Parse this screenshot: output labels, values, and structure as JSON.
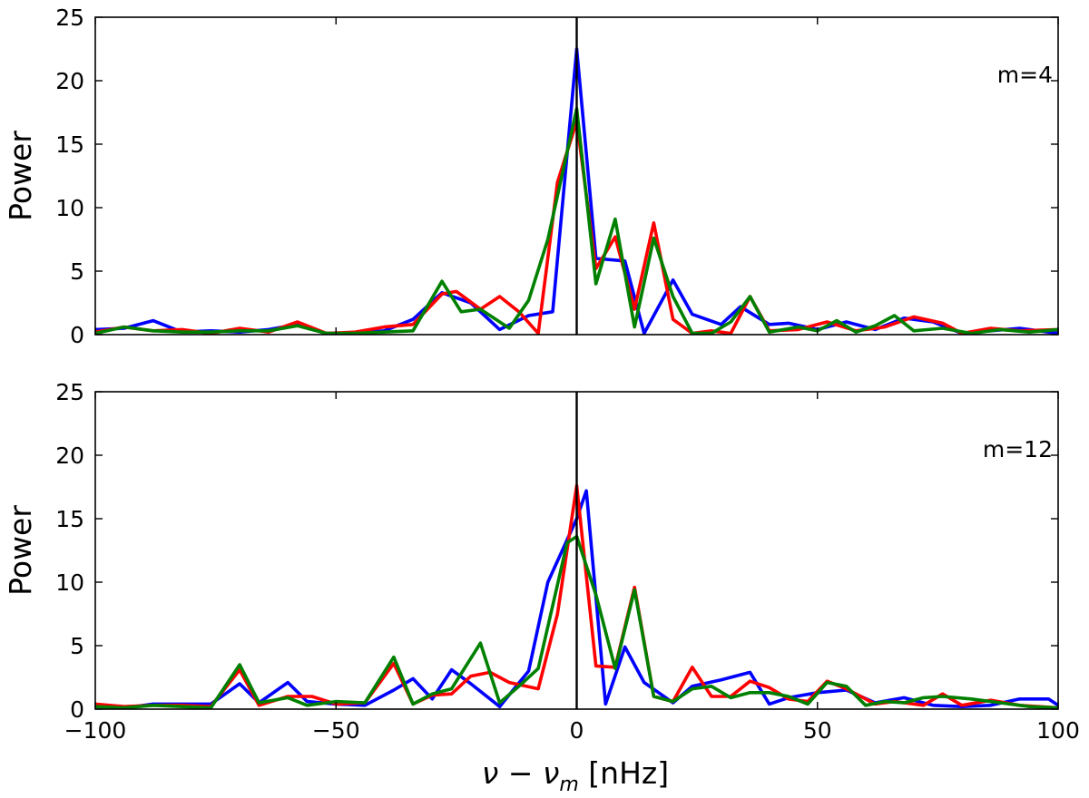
{
  "chart_data": {
    "type": "line",
    "xlabel_math": "ν − ν",
    "xlabel_sub": "m",
    "xlabel_unit": " [nHz]",
    "x_ticks": [
      "−100",
      "−50",
      "0",
      "50",
      "100"
    ],
    "x_tick_values": [
      -100,
      -50,
      0,
      50,
      100
    ],
    "y_ticks": [
      "0",
      "5",
      "10",
      "15",
      "20",
      "25"
    ],
    "y_tick_values": [
      0,
      5,
      10,
      15,
      20,
      25
    ],
    "xlim": [
      -100,
      100
    ],
    "ylim": [
      0,
      25
    ],
    "vertical_line_x": 0,
    "grid": false,
    "panels": [
      {
        "annotation": "m=4",
        "ylabel": "Power",
        "series": [
          {
            "color": "#0000ff",
            "x": [
              -100,
              -94,
              -88,
              -82,
              -76,
              -70,
              -64,
              -58,
              -52,
              -46,
              -40,
              -34,
              -28,
              -22,
              -16,
              -10,
              -5,
              0,
              4,
              10,
              14,
              20,
              24,
              30,
              34,
              40,
              44,
              50,
              56,
              62,
              68,
              74,
              80,
              86,
              92,
              100
            ],
            "y": [
              0.4,
              0.5,
              1.1,
              0.2,
              0.3,
              0.2,
              0.4,
              0.8,
              0.1,
              0.1,
              0.3,
              1.2,
              3.3,
              2.5,
              0.4,
              1.5,
              1.8,
              22.5,
              6.0,
              5.8,
              0.1,
              4.3,
              1.6,
              0.8,
              2.2,
              0.8,
              0.9,
              0.4,
              1.0,
              0.4,
              1.3,
              1.0,
              0.1,
              0.3,
              0.5,
              0.1
            ]
          },
          {
            "color": "#ff0000",
            "x": [
              -100,
              -94,
              -88,
              -82,
              -76,
              -70,
              -64,
              -58,
              -52,
              -46,
              -40,
              -34,
              -28,
              -25,
              -20,
              -16,
              -12,
              -8,
              -4,
              0,
              4,
              8,
              12,
              16,
              20,
              24,
              28,
              32,
              36,
              40,
              46,
              52,
              58,
              64,
              70,
              76,
              80,
              86,
              92,
              100
            ],
            "y": [
              0.2,
              0.6,
              0.3,
              0.4,
              0.1,
              0.5,
              0.2,
              1.0,
              0.1,
              0.2,
              0.6,
              0.8,
              3.2,
              3.4,
              2.0,
              3.0,
              1.8,
              0.1,
              12.0,
              16.8,
              5.2,
              7.7,
              2.0,
              8.8,
              1.2,
              0.1,
              0.3,
              0.1,
              3.0,
              0.3,
              0.4,
              1.0,
              0.3,
              0.6,
              1.4,
              0.9,
              0.1,
              0.5,
              0.3,
              0.4
            ]
          },
          {
            "color": "#008000",
            "x": [
              -100,
              -94,
              -88,
              -82,
              -76,
              -70,
              -64,
              -58,
              -52,
              -46,
              -40,
              -34,
              -28,
              -24,
              -20,
              -14,
              -10,
              -6,
              0,
              4,
              8,
              12,
              16,
              20,
              24,
              28,
              32,
              36,
              40,
              46,
              50,
              54,
              58,
              62,
              66,
              70,
              76,
              82,
              88,
              94,
              100
            ],
            "y": [
              0.1,
              0.6,
              0.3,
              0.2,
              0.2,
              0.3,
              0.3,
              0.7,
              0.1,
              0.1,
              0.2,
              0.3,
              4.2,
              1.8,
              2.0,
              0.5,
              2.7,
              7.5,
              17.8,
              4.0,
              9.1,
              0.6,
              7.6,
              3.0,
              0.1,
              0.1,
              1.0,
              3.0,
              0.2,
              0.6,
              0.3,
              1.1,
              0.2,
              0.7,
              1.5,
              0.3,
              0.5,
              0.1,
              0.4,
              0.2,
              0.4
            ]
          }
        ]
      },
      {
        "annotation": "m=12",
        "ylabel": "Power",
        "series": [
          {
            "color": "#0000ff",
            "x": [
              -100,
              -94,
              -88,
              -82,
              -76,
              -70,
              -66,
              -60,
              -56,
              -50,
              -44,
              -38,
              -34,
              -30,
              -26,
              -22,
              -16,
              -10,
              -6,
              0,
              2,
              6,
              10,
              14,
              20,
              24,
              30,
              36,
              40,
              44,
              50,
              56,
              62,
              68,
              74,
              80,
              86,
              92,
              98,
              100
            ],
            "y": [
              0.3,
              0.1,
              0.4,
              0.4,
              0.4,
              2.0,
              0.5,
              2.1,
              0.6,
              0.4,
              0.3,
              1.5,
              2.4,
              0.8,
              3.1,
              2.0,
              0.2,
              3.0,
              10.0,
              15.0,
              17.2,
              0.4,
              4.9,
              2.1,
              0.5,
              1.8,
              2.3,
              2.9,
              0.4,
              0.9,
              1.3,
              1.5,
              0.5,
              0.9,
              0.3,
              0.2,
              0.3,
              0.8,
              0.8,
              0.3
            ]
          },
          {
            "color": "#ff0000",
            "x": [
              -100,
              -94,
              -88,
              -82,
              -76,
              -70,
              -66,
              -60,
              -55,
              -50,
              -44,
              -38,
              -34,
              -30,
              -26,
              -22,
              -18,
              -14,
              -8,
              -4,
              0,
              4,
              8,
              12,
              16,
              20,
              24,
              28,
              32,
              36,
              40,
              44,
              48,
              52,
              56,
              62,
              66,
              72,
              76,
              80,
              86,
              92,
              100
            ],
            "y": [
              0.4,
              0.2,
              0.3,
              0.3,
              0.2,
              3.1,
              0.3,
              1.0,
              1.0,
              0.4,
              0.5,
              3.6,
              0.4,
              1.1,
              1.2,
              2.6,
              2.9,
              2.1,
              1.6,
              7.5,
              17.6,
              3.4,
              3.3,
              9.6,
              1.0,
              0.6,
              3.3,
              1.0,
              1.0,
              2.2,
              1.7,
              0.8,
              0.6,
              2.2,
              1.6,
              0.4,
              0.6,
              0.3,
              1.2,
              0.3,
              0.7,
              0.3,
              0.1
            ]
          },
          {
            "color": "#008000",
            "x": [
              -100,
              -94,
              -88,
              -82,
              -76,
              -70,
              -66,
              -60,
              -56,
              -50,
              -44,
              -38,
              -34,
              -30,
              -26,
              -20,
              -16,
              -12,
              -8,
              -2,
              0,
              4,
              8,
              12,
              16,
              20,
              24,
              28,
              32,
              36,
              40,
              44,
              48,
              52,
              56,
              60,
              64,
              68,
              72,
              76,
              82,
              88,
              94,
              100
            ],
            "y": [
              0.2,
              0.1,
              0.3,
              0.2,
              0.1,
              3.5,
              0.5,
              0.9,
              0.3,
              0.6,
              0.5,
              4.1,
              0.4,
              1.2,
              1.6,
              5.2,
              0.5,
              1.8,
              3.2,
              13.1,
              13.6,
              9.0,
              3.2,
              9.4,
              1.0,
              0.6,
              1.6,
              1.8,
              0.9,
              1.3,
              1.3,
              1.0,
              0.4,
              2.1,
              1.8,
              0.3,
              0.6,
              0.5,
              0.9,
              1.0,
              0.8,
              0.5,
              0.2,
              0.1
            ]
          }
        ]
      }
    ]
  }
}
